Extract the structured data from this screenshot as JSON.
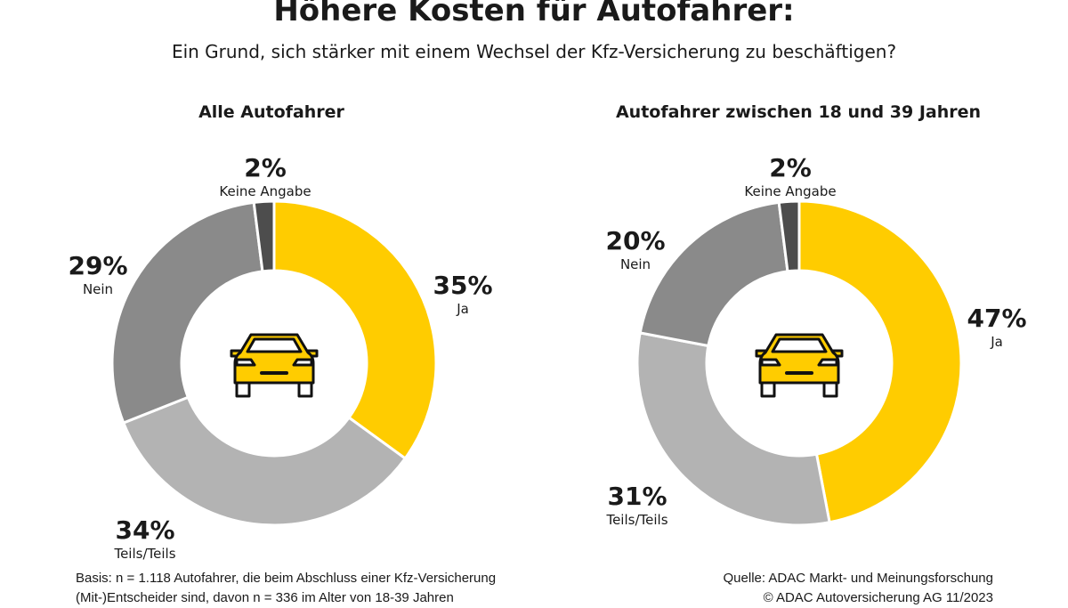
{
  "title": "Höhere Kosten für Autofahrer:",
  "subtitle": "Ein Grund, sich stärker mit einem Wechsel der Kfz-Versicherung zu beschäftigen?",
  "colors": {
    "Ja": "#FFCC00",
    "Teils/Teils": "#B3B3B3",
    "Nein": "#8A8A8A",
    "Keine Angabe": "#4D4D4D"
  },
  "center_icon": "car-icon",
  "chart_data": [
    {
      "type": "pie",
      "subtype": "donut",
      "title": "Alle Autofahrer",
      "categories": [
        "Ja",
        "Teils/Teils",
        "Nein",
        "Keine Angabe"
      ],
      "values": [
        35,
        34,
        29,
        2
      ],
      "labels": [
        "35%",
        "34%",
        "29%",
        "2%"
      ],
      "unit": "%"
    },
    {
      "type": "pie",
      "subtype": "donut",
      "title": "Autofahrer zwischen 18 und 39 Jahren",
      "categories": [
        "Ja",
        "Teils/Teils",
        "Nein",
        "Keine Angabe"
      ],
      "values": [
        47,
        31,
        20,
        2
      ],
      "labels": [
        "47%",
        "31%",
        "20%",
        "2%"
      ],
      "unit": "%"
    }
  ],
  "footer": {
    "basis_line1": "Basis: n = 1.118 Autofahrer, die beim Abschluss einer Kfz-Versicherung",
    "basis_line2": "(Mit-)Entscheider sind, davon n = 336 im Alter von 18-39 Jahren",
    "source_line1": "Quelle: ADAC Markt- und Meinungsforschung",
    "source_line2": "© ADAC Autoversicherung AG 11/2023"
  }
}
